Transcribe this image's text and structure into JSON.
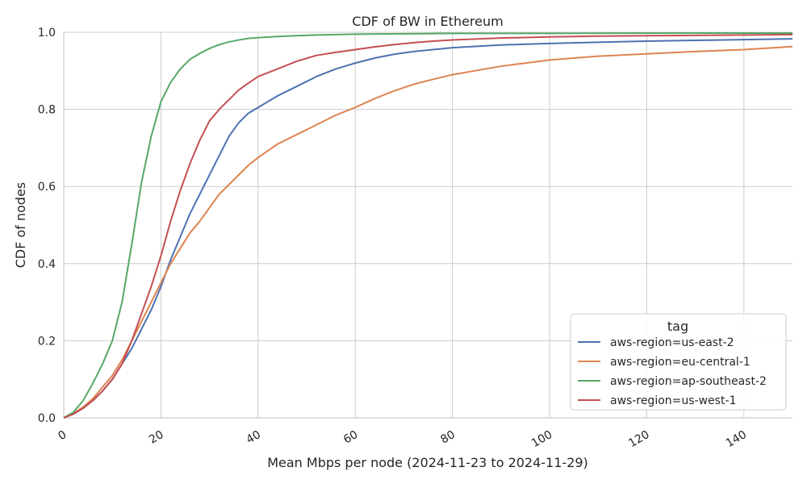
{
  "chart_data": {
    "type": "line",
    "title": "CDF of BW in Ethereum",
    "xlabel": "Mean Mbps per node (2024-11-23 to 2024-11-29)",
    "ylabel": "CDF of nodes",
    "xlim": [
      0,
      150
    ],
    "ylim": [
      0,
      1.0
    ],
    "x_ticks": [
      0,
      20,
      40,
      60,
      80,
      100,
      120,
      140
    ],
    "y_ticks": [
      0.0,
      0.2,
      0.4,
      0.6,
      0.8,
      1.0
    ],
    "x_tick_labels": [
      "0",
      "20",
      "40",
      "60",
      "80",
      "100",
      "120",
      "140"
    ],
    "y_tick_labels": [
      "0.0",
      "0.2",
      "0.4",
      "0.6",
      "0.8",
      "1.0"
    ],
    "grid": true,
    "legend": {
      "title": "tag",
      "position": "lower-right"
    },
    "series": [
      {
        "name": "aws-region=us-east-2",
        "color": "#4c72b0",
        "x": [
          0,
          2,
          4,
          6,
          8,
          10,
          12,
          14,
          16,
          18,
          20,
          22,
          24,
          26,
          28,
          30,
          32,
          34,
          36,
          38,
          40,
          44,
          48,
          52,
          56,
          60,
          64,
          68,
          72,
          76,
          80,
          90,
          100,
          110,
          120,
          130,
          140,
          150
        ],
        "y": [
          0,
          0.01,
          0.025,
          0.045,
          0.07,
          0.1,
          0.14,
          0.18,
          0.23,
          0.28,
          0.34,
          0.41,
          0.47,
          0.53,
          0.58,
          0.63,
          0.68,
          0.73,
          0.765,
          0.79,
          0.805,
          0.835,
          0.86,
          0.885,
          0.905,
          0.92,
          0.933,
          0.943,
          0.95,
          0.955,
          0.96,
          0.967,
          0.971,
          0.974,
          0.977,
          0.979,
          0.981,
          0.983
        ]
      },
      {
        "name": "aws-region=eu-central-1",
        "color": "#dd8452",
        "x": [
          0,
          2,
          4,
          6,
          8,
          10,
          12,
          14,
          16,
          18,
          20,
          22,
          24,
          26,
          28,
          30,
          32,
          34,
          36,
          38,
          40,
          44,
          48,
          52,
          56,
          60,
          64,
          68,
          72,
          76,
          80,
          90,
          100,
          110,
          120,
          130,
          140,
          150
        ],
        "y": [
          0,
          0.012,
          0.028,
          0.05,
          0.08,
          0.11,
          0.15,
          0.2,
          0.25,
          0.3,
          0.35,
          0.4,
          0.44,
          0.48,
          0.51,
          0.545,
          0.58,
          0.605,
          0.63,
          0.655,
          0.675,
          0.71,
          0.735,
          0.76,
          0.785,
          0.805,
          0.828,
          0.848,
          0.865,
          0.878,
          0.89,
          0.912,
          0.928,
          0.938,
          0.944,
          0.95,
          0.955,
          0.963
        ]
      },
      {
        "name": "aws-region=ap-southeast-2",
        "color": "#55a868",
        "x": [
          0,
          2,
          4,
          6,
          8,
          10,
          12,
          14,
          16,
          18,
          20,
          22,
          24,
          26,
          28,
          30,
          32,
          34,
          36,
          38,
          40,
          44,
          48,
          52,
          56,
          60,
          70,
          80,
          100,
          120,
          150
        ],
        "y": [
          0,
          0.015,
          0.045,
          0.09,
          0.14,
          0.2,
          0.3,
          0.45,
          0.61,
          0.73,
          0.82,
          0.87,
          0.905,
          0.93,
          0.945,
          0.958,
          0.968,
          0.975,
          0.98,
          0.984,
          0.986,
          0.989,
          0.991,
          0.993,
          0.994,
          0.995,
          0.996,
          0.997,
          0.997,
          0.998,
          0.998
        ]
      },
      {
        "name": "aws-region=us-west-1",
        "color": "#c44e52",
        "x": [
          0,
          2,
          4,
          6,
          8,
          10,
          12,
          14,
          16,
          18,
          20,
          22,
          24,
          26,
          28,
          30,
          32,
          34,
          36,
          38,
          40,
          44,
          48,
          52,
          56,
          60,
          64,
          68,
          72,
          76,
          80,
          90,
          100,
          110,
          120,
          130,
          140,
          150
        ],
        "y": [
          0,
          0.01,
          0.025,
          0.045,
          0.07,
          0.1,
          0.14,
          0.2,
          0.27,
          0.34,
          0.42,
          0.51,
          0.59,
          0.66,
          0.72,
          0.77,
          0.8,
          0.825,
          0.85,
          0.868,
          0.885,
          0.905,
          0.925,
          0.94,
          0.948,
          0.955,
          0.962,
          0.968,
          0.973,
          0.977,
          0.98,
          0.985,
          0.988,
          0.99,
          0.991,
          0.992,
          0.993,
          0.994
        ]
      }
    ]
  }
}
